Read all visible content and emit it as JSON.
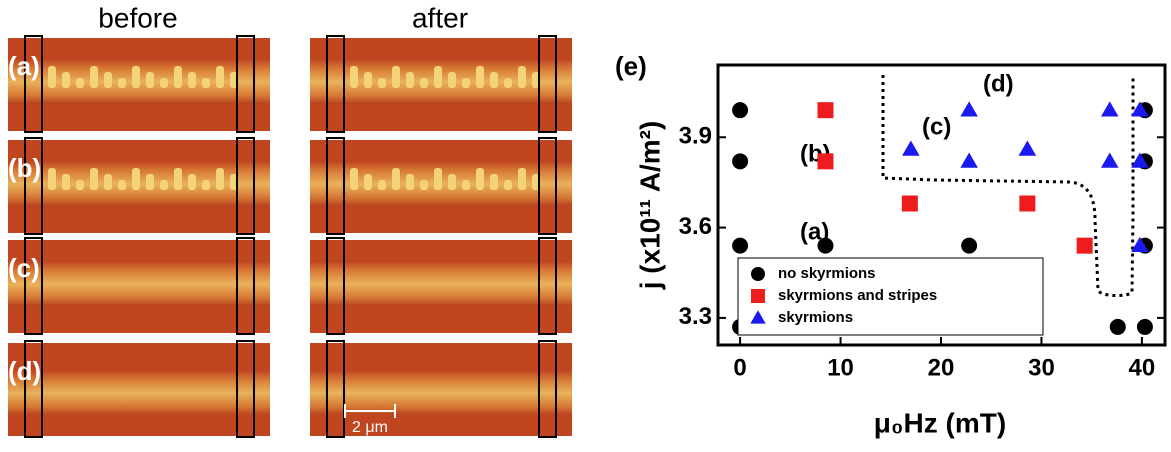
{
  "images": {
    "column_titles": [
      "before",
      "after"
    ],
    "row_labels": [
      "(a)",
      "(b)",
      "(c)",
      "(d)"
    ],
    "scale_bar": "2 μm"
  },
  "chart_data": {
    "type": "scatter",
    "panel_label": "(e)",
    "x_label": "μ₀Hz (mT)",
    "y_label": "j (x10¹¹ A/m²)",
    "xlim": [
      -2.2,
      42.3
    ],
    "xticks": [
      0,
      10,
      20,
      30,
      40
    ],
    "ylim": [
      3.21,
      4.14
    ],
    "yticks": [
      3.3,
      3.6,
      3.9
    ],
    "annotations": [
      "(a)",
      "(b)",
      "(c)",
      "(d)"
    ],
    "series": [
      {
        "name": "no skyrmions",
        "color": "#000000",
        "marker": "circle",
        "x": [
          0,
          0,
          0,
          0,
          8.5,
          22.8,
          40.3,
          40.3,
          40.3,
          37.6,
          40.3
        ],
        "values": [
          3.99,
          3.82,
          3.54,
          3.27,
          3.54,
          3.54,
          3.99,
          3.82,
          3.54,
          3.27,
          3.27
        ]
      },
      {
        "name": "skyrmions and stripes",
        "color": "#ee1c1c",
        "marker": "square",
        "x": [
          8.5,
          8.5,
          16.9,
          28.6,
          34.3
        ],
        "values": [
          3.99,
          3.82,
          3.68,
          3.68,
          3.54
        ]
      },
      {
        "name": "skyrmions",
        "color": "#1a1aee",
        "marker": "triangle",
        "x": [
          22.8,
          17,
          28.6,
          22.8,
          36.8,
          39.8,
          36.8,
          39.8,
          39.8
        ],
        "values": [
          3.99,
          3.86,
          3.86,
          3.82,
          3.99,
          3.99,
          3.82,
          3.82,
          3.54
        ]
      }
    ]
  }
}
